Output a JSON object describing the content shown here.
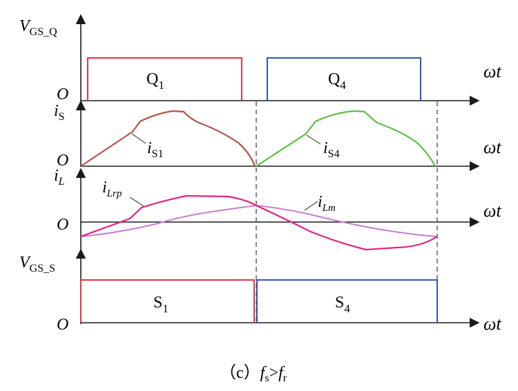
{
  "colors": {
    "red": "#e0343f",
    "blue": "#2e55b8",
    "brown": "#b5524b",
    "green": "#5cbf43",
    "magenta": "#e3237f",
    "violet": "#c77ccf",
    "axis": "#1a1a1a",
    "dash": "#444444"
  },
  "labels": {
    "vgsq": {
      "main": "V",
      "sub": "GS_Q"
    },
    "is": {
      "main": "i",
      "sub": "S"
    },
    "il": {
      "main": "i",
      "sub": "L"
    },
    "vgss": {
      "main": "V",
      "sub": "GS_S"
    },
    "origin": "O",
    "omega_t": "ωt",
    "q1": {
      "main": "Q",
      "sub": "1"
    },
    "q4": {
      "main": "Q",
      "sub": "4"
    },
    "is1": {
      "main": "i",
      "sub": "S1"
    },
    "is4": {
      "main": "i",
      "sub": "S4"
    },
    "ilrp": {
      "main": "i",
      "sub": "Lrp"
    },
    "ilm": {
      "main": "i",
      "sub": "Lm"
    },
    "s1": {
      "main": "S",
      "sub": "1"
    },
    "s4": {
      "main": "S",
      "sub": "4"
    }
  },
  "caption": {
    "prefix": "（c）",
    "fs": "f",
    "fs_sub": "s",
    "gt": ">",
    "fr": "f",
    "fr_sub": "r"
  }
}
